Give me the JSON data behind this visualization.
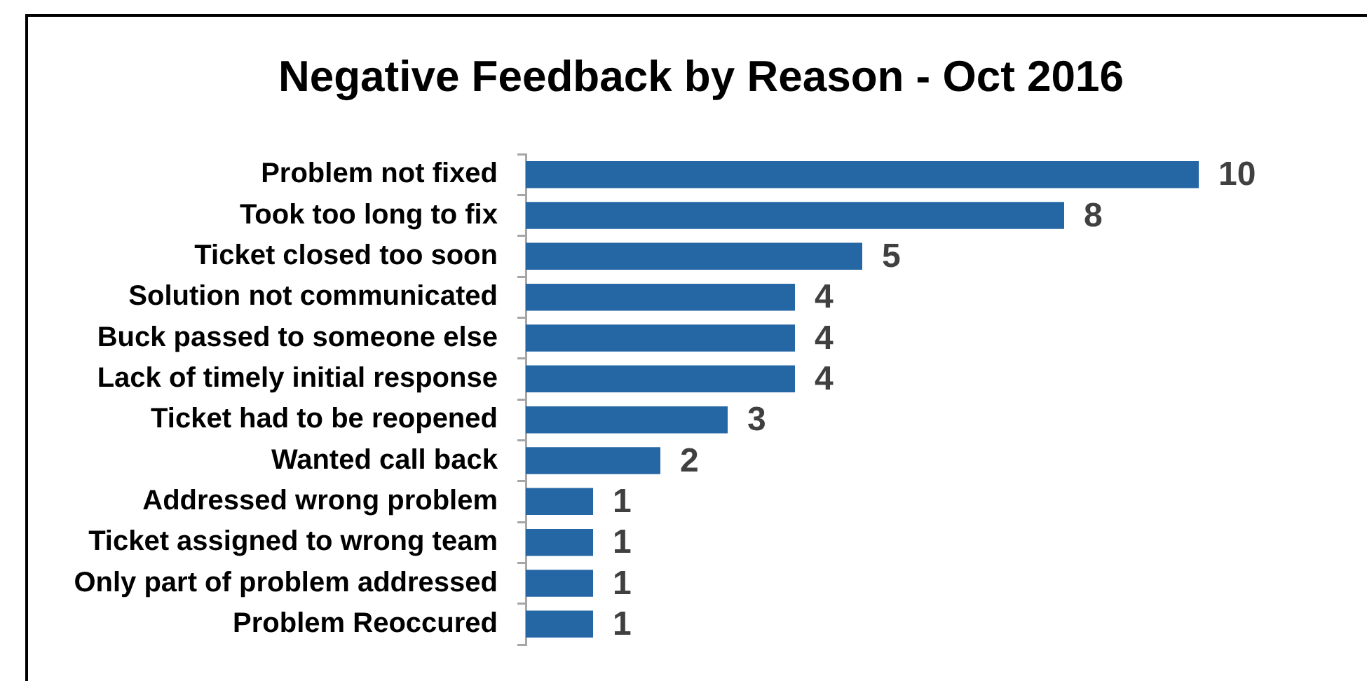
{
  "chart_data": {
    "type": "bar",
    "orientation": "horizontal",
    "title": "Negative Feedback by Reason - Oct 2016",
    "categories": [
      "Problem not fixed",
      "Took too long to fix",
      "Ticket closed too soon",
      "Solution not communicated",
      "Buck passed to someone else",
      "Lack of timely initial response",
      "Ticket had to be reopened",
      "Wanted call back",
      "Addressed wrong problem",
      "Ticket assigned to wrong team",
      "Only part of problem addressed",
      "Problem Reoccured"
    ],
    "values": [
      10,
      8,
      5,
      4,
      4,
      4,
      3,
      2,
      1,
      1,
      1,
      1
    ],
    "color": "#2566a4",
    "data_labels": true,
    "tick_labels": "y"
  }
}
